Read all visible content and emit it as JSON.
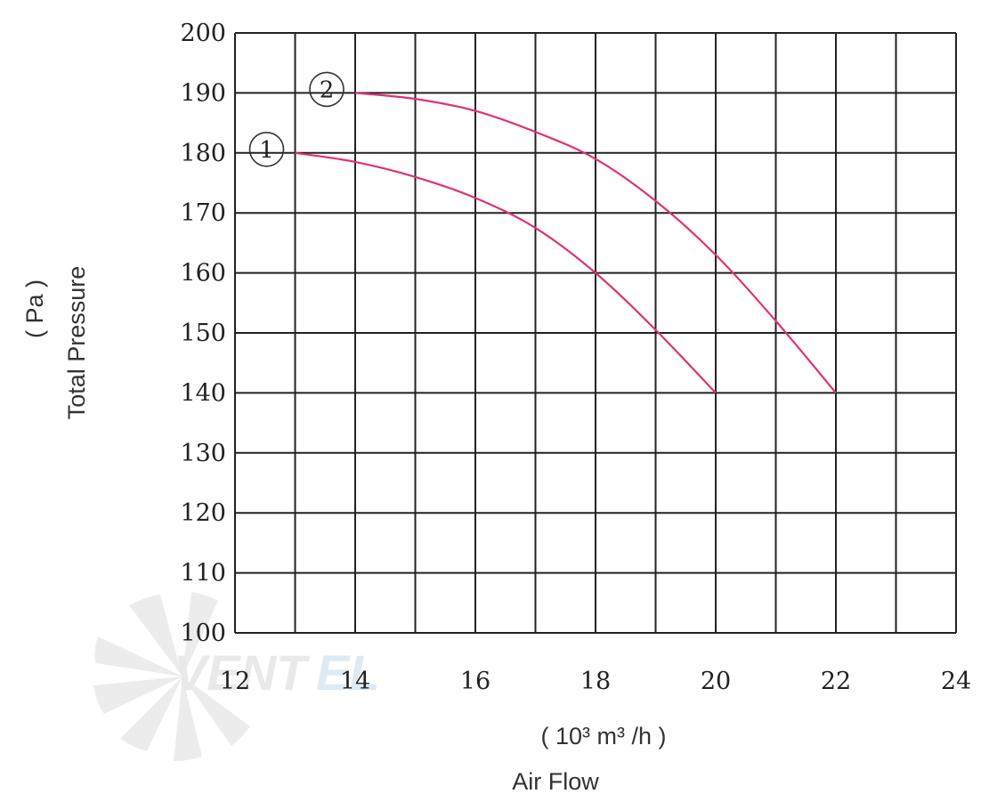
{
  "chart_data": {
    "type": "line",
    "xlabel": "Air Flow",
    "xunit": "( 10³ m³ /h )",
    "ylabel": "Total Pressure",
    "yunit": "( Pa )",
    "xlim": [
      12,
      24
    ],
    "ylim": [
      100,
      200
    ],
    "x_grid_step": 1,
    "y_grid_step": 10,
    "x_tick_labels": [
      "12",
      "14",
      "16",
      "18",
      "20",
      "22",
      "24"
    ],
    "y_tick_labels": [
      "100",
      "110",
      "120",
      "130",
      "140",
      "150",
      "160",
      "170",
      "180",
      "190",
      "200"
    ],
    "grid": true,
    "series": [
      {
        "name": "①",
        "color": "#e0307a",
        "points": [
          [
            13,
            180
          ],
          [
            14,
            178.5
          ],
          [
            15,
            176
          ],
          [
            16,
            172.5
          ],
          [
            17,
            167.5
          ],
          [
            18,
            160
          ],
          [
            19,
            150.5
          ],
          [
            20,
            140
          ]
        ]
      },
      {
        "name": "②",
        "color": "#e0307a",
        "points": [
          [
            14,
            190
          ],
          [
            15,
            189
          ],
          [
            16,
            187
          ],
          [
            17,
            183.5
          ],
          [
            18,
            179
          ],
          [
            19,
            172
          ],
          [
            20,
            163
          ],
          [
            21,
            152
          ],
          [
            22,
            140
          ]
        ]
      }
    ],
    "watermark": "VENTEL"
  }
}
